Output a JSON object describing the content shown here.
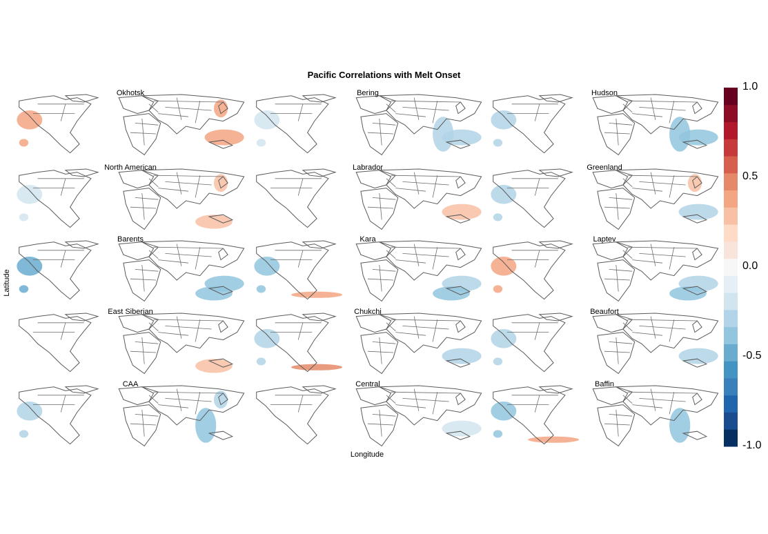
{
  "chart_data": {
    "type": "heatmap",
    "title": "Pacific Correlations with Melt Onset",
    "xlabel": "Longitude",
    "ylabel": "Latitude",
    "grid": false,
    "layout": "5 rows x 3 columns of world-map panels",
    "color_scale": {
      "range": [
        -1.0,
        1.0
      ],
      "ticks": [
        "1.0",
        "0.5",
        "0.0",
        "-0.5",
        "-1.0"
      ],
      "tick_values": [
        1.0,
        0.5,
        0.0,
        -0.5,
        -1.0
      ],
      "colors": [
        "#053061",
        "#1a4d8f",
        "#2166ac",
        "#3a80ba",
        "#4393c3",
        "#6aacd0",
        "#92c5de",
        "#b2d4e8",
        "#d1e5f0",
        "#e6eff5",
        "#f7f7f7",
        "#f9e4dc",
        "#fddbc7",
        "#f8c0a4",
        "#f4a582",
        "#e58a69",
        "#d6604d",
        "#c63a3c",
        "#b2182b",
        "#8c0d25",
        "#67001f"
      ],
      "legend_position": "right"
    },
    "panels": [
      {
        "name": "Okhotsk",
        "dominant": "positive",
        "patches": [
          {
            "region": "north-pacific-east",
            "r": 0.42
          },
          {
            "region": "west-pacific-tropics",
            "r": 0.35
          },
          {
            "region": "japan",
            "r": 0.4
          }
        ]
      },
      {
        "name": "Bering",
        "dominant": "negative",
        "patches": [
          {
            "region": "north-pacific-east",
            "r": -0.25
          },
          {
            "region": "west-pacific-tropics",
            "r": -0.3
          },
          {
            "region": "south-china-sea",
            "r": -0.28
          }
        ]
      },
      {
        "name": "Hudson",
        "dominant": "negative",
        "patches": [
          {
            "region": "north-pacific-east",
            "r": -0.3
          },
          {
            "region": "west-pacific-tropics",
            "r": -0.4
          },
          {
            "region": "south-china-sea",
            "r": -0.38
          }
        ]
      },
      {
        "name": "North American",
        "dominant": "mixed",
        "patches": [
          {
            "region": "north-pacific-east",
            "r": -0.25
          },
          {
            "region": "japan",
            "r": 0.3
          },
          {
            "region": "maritime-continent",
            "r": 0.3
          }
        ]
      },
      {
        "name": "Labrador",
        "dominant": "weak",
        "patches": [
          {
            "region": "west-pacific-tropics",
            "r": 0.25
          }
        ]
      },
      {
        "name": "Greenland",
        "dominant": "negative",
        "patches": [
          {
            "region": "north-pacific-east",
            "r": -0.35
          },
          {
            "region": "west-pacific-tropics",
            "r": -0.3
          },
          {
            "region": "japan",
            "r": 0.25
          }
        ]
      },
      {
        "name": "Barents",
        "dominant": "negative",
        "patches": [
          {
            "region": "north-pacific-east",
            "r": -0.5
          },
          {
            "region": "west-pacific-tropics",
            "r": -0.4
          },
          {
            "region": "maritime-continent",
            "r": -0.45
          }
        ]
      },
      {
        "name": "Kara",
        "dominant": "negative",
        "patches": [
          {
            "region": "north-pacific-east",
            "r": -0.4
          },
          {
            "region": "west-pacific-tropics",
            "r": -0.35
          },
          {
            "region": "maritime-continent",
            "r": -0.4
          },
          {
            "region": "central-pacific-tropics",
            "r": 0.35
          }
        ]
      },
      {
        "name": "Laptev",
        "dominant": "mixed",
        "patches": [
          {
            "region": "north-pacific-east",
            "r": 0.35
          },
          {
            "region": "west-pacific-tropics",
            "r": -0.35
          },
          {
            "region": "maritime-continent",
            "r": -0.4
          }
        ]
      },
      {
        "name": "East Siberian",
        "dominant": "weak",
        "patches": [
          {
            "region": "maritime-continent",
            "r": 0.25
          }
        ]
      },
      {
        "name": "Chukchi",
        "dominant": "mixed",
        "patches": [
          {
            "region": "north-pacific-east",
            "r": -0.3
          },
          {
            "region": "central-pacific-tropics",
            "r": 0.45
          },
          {
            "region": "west-pacific-tropics",
            "r": -0.3
          }
        ]
      },
      {
        "name": "Beaufort",
        "dominant": "negative",
        "patches": [
          {
            "region": "north-pacific-east",
            "r": -0.35
          },
          {
            "region": "west-pacific-tropics",
            "r": -0.3
          }
        ]
      },
      {
        "name": "CAA",
        "dominant": "negative",
        "patches": [
          {
            "region": "north-pacific-east",
            "r": -0.35
          },
          {
            "region": "south-china-sea",
            "r": -0.4
          },
          {
            "region": "japan",
            "r": -0.35
          }
        ]
      },
      {
        "name": "Central",
        "dominant": "weak",
        "patches": [
          {
            "region": "west-pacific-tropics",
            "r": -0.2
          }
        ]
      },
      {
        "name": "Baffin",
        "dominant": "mixed",
        "patches": [
          {
            "region": "north-pacific-east",
            "r": -0.45
          },
          {
            "region": "central-pacific-tropics",
            "r": 0.35
          },
          {
            "region": "south-china-sea",
            "r": -0.4
          }
        ]
      }
    ]
  }
}
